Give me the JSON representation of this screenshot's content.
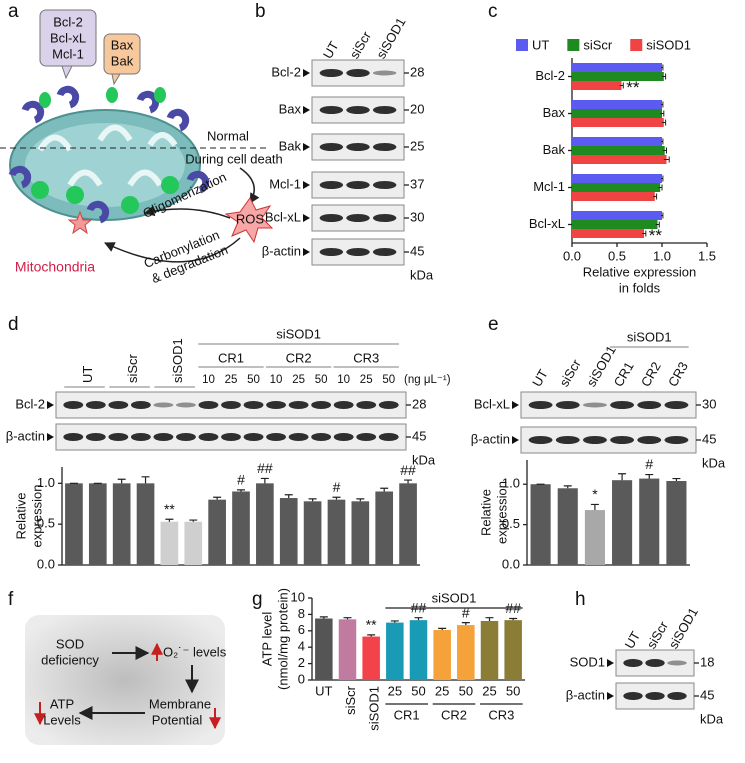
{
  "panel_labels": [
    "a",
    "b",
    "c",
    "d",
    "e",
    "f",
    "g",
    "h"
  ],
  "diagram_a": {
    "anti_apoptotic": [
      "Bcl-2",
      "Bcl-xL",
      "Mcl-1"
    ],
    "pro_apoptotic": [
      "Bax",
      "Bak"
    ],
    "normal": "Normal",
    "cell_death": "During cell death",
    "ros": "ROS",
    "oligomerization": "Oligomerization",
    "carbonylation": [
      "Carbonylation",
      "& degradation"
    ],
    "organelle": "Mitochondria"
  },
  "blot_b": {
    "lanes": [
      "UT",
      "siScr",
      "siSOD1"
    ],
    "rows": [
      {
        "label": "Bcl-2",
        "kda": 28
      },
      {
        "label": "Bax",
        "kda": 20
      },
      {
        "label": "Bak",
        "kda": 25
      },
      {
        "label": "Mcl-1",
        "kda": 37
      },
      {
        "label": "Bcl-xL",
        "kda": 30
      },
      {
        "label": "β-actin",
        "kda": 45
      }
    ],
    "kda_unit": "kDa"
  },
  "blot_d": {
    "lanes": [
      "UT",
      null,
      "siScr",
      null,
      "siSOD1",
      null,
      "10",
      "25",
      "50",
      "10",
      "25",
      "50",
      "10",
      "25",
      "50"
    ],
    "groups": [
      "CR1",
      "CR2",
      "CR3"
    ],
    "super_label": "siSOD1",
    "unit": "(ng μL⁻¹)",
    "rows": [
      {
        "label": "Bcl-2",
        "kda": 28
      },
      {
        "label": "β-actin",
        "kda": 45
      }
    ],
    "kda_unit": "kDa"
  },
  "blot_e": {
    "lanes": [
      "UT",
      "siScr",
      "siSOD1",
      "CR1",
      "CR2",
      "CR3"
    ],
    "super_label": "siSOD1",
    "rows": [
      {
        "label": "Bcl-xL",
        "kda": 30
      },
      {
        "label": "β-actin",
        "kda": 45
      }
    ],
    "kda_unit": "kDa"
  },
  "blot_h": {
    "lanes": [
      "UT",
      "siScr",
      "siSOD1"
    ],
    "rows": [
      {
        "label": "SOD1",
        "kda": 18
      },
      {
        "label": "β-actin",
        "kda": 45
      }
    ],
    "kda_unit": "kDa"
  },
  "diagram_f": {
    "sod": [
      "SOD",
      "deficiency"
    ],
    "o2": "O₂˙⁻ levels",
    "membrane": [
      "Membrane",
      "Potential"
    ],
    "atp": [
      "ATP",
      "Levels"
    ]
  },
  "chart_data": [
    {
      "type": "barh",
      "categories": [
        "Bcl-2",
        "Bax",
        "Bak",
        "Mcl-1",
        "Bcl-xL"
      ],
      "series": [
        {
          "name": "UT",
          "color": "#5b5bf2",
          "values": [
            1.0,
            1.0,
            1.0,
            1.0,
            1.0
          ],
          "errors": [
            0.01,
            0.01,
            0.01,
            0.01,
            0.01
          ],
          "annotations": [
            null,
            null,
            null,
            null,
            null
          ]
        },
        {
          "name": "siScr",
          "color": "#1f8a1f",
          "values": [
            1.02,
            1.0,
            1.03,
            0.98,
            0.95
          ],
          "errors": [
            0.02,
            0.02,
            0.02,
            0.02,
            0.02
          ],
          "annotations": [
            null,
            null,
            null,
            null,
            null
          ]
        },
        {
          "name": "siSOD1",
          "color": "#f04444",
          "values": [
            0.55,
            1.02,
            1.05,
            0.92,
            0.8
          ],
          "errors": [
            0.02,
            0.02,
            0.03,
            0.02,
            0.02
          ],
          "annotations": [
            "**",
            null,
            null,
            null,
            "**"
          ]
        }
      ],
      "xlim": [
        0,
        1.5
      ],
      "xticks": [
        {
          "value": 0,
          "label": "0.0"
        },
        {
          "value": 0.5,
          "label": "0.5"
        },
        {
          "value": 1,
          "label": "1.0"
        },
        {
          "value": 1.5,
          "label": "1.5"
        }
      ],
      "x_label": [
        "Relative expression",
        "in folds"
      ],
      "legend": "top"
    },
    {
      "type": "bar",
      "values": [
        1.0,
        1.0,
        1.0,
        1.0,
        0.53,
        0.53,
        0.8,
        0.9,
        1.0,
        0.82,
        0.78,
        0.8,
        0.78,
        0.9,
        1.0
      ],
      "errors": [
        0.0,
        0.0,
        0.05,
        0.08,
        0.03,
        0.02,
        0.03,
        0.02,
        0.06,
        0.04,
        0.03,
        0.03,
        0.03,
        0.04,
        0.04
      ],
      "colors": [
        "#5a5a5a",
        "#5a5a5a",
        "#5a5a5a",
        "#5a5a5a",
        "#cfcfcf",
        "#cfcfcf",
        "#5a5a5a",
        "#5a5a5a",
        "#5a5a5a",
        "#5a5a5a",
        "#5a5a5a",
        "#5a5a5a",
        "#5a5a5a",
        "#5a5a5a",
        "#5a5a5a"
      ],
      "annotations": [
        null,
        null,
        null,
        null,
        "**",
        null,
        null,
        "#",
        "##",
        null,
        null,
        "#",
        null,
        null,
        "##"
      ],
      "ylim": [
        0,
        1.2
      ],
      "yticks": [
        {
          "value": 0,
          "label": "0.0"
        },
        {
          "value": 0.5,
          "label": "0.5"
        },
        {
          "value": 1,
          "label": "1.0"
        }
      ],
      "y_label": [
        "Relative",
        "expression"
      ]
    },
    {
      "type": "bar",
      "values": [
        1.0,
        0.95,
        0.68,
        1.05,
        1.07,
        1.04
      ],
      "errors": [
        0.0,
        0.03,
        0.07,
        0.08,
        0.05,
        0.03
      ],
      "colors": [
        "#5a5a5a",
        "#5a5a5a",
        "#a8a8a8",
        "#5a5a5a",
        "#5a5a5a",
        "#5a5a5a"
      ],
      "annotations": [
        null,
        null,
        "*",
        null,
        "#",
        null
      ],
      "ylim": [
        0,
        1.3
      ],
      "yticks": [
        {
          "value": 0,
          "label": "0.0"
        },
        {
          "value": 0.5,
          "label": "0.5"
        },
        {
          "value": 1,
          "label": "1.0"
        }
      ],
      "y_label": [
        "Relative",
        "expression"
      ]
    },
    {
      "type": "bar",
      "categories": [
        "UT",
        "siScr",
        "siSOD1",
        "25",
        "50",
        "25",
        "50",
        "25",
        "50"
      ],
      "groups": [
        "CR1",
        "CR2",
        "CR3"
      ],
      "super_label": "siSOD1",
      "values": [
        7.5,
        7.4,
        5.3,
        7.0,
        7.3,
        6.1,
        6.7,
        7.2,
        7.3
      ],
      "errors": [
        0.2,
        0.2,
        0.2,
        0.2,
        0.3,
        0.2,
        0.3,
        0.4,
        0.2
      ],
      "colors": [
        "#555555",
        "#c27ba0",
        "#f2424a",
        "#1a9bb5",
        "#1a9bb5",
        "#f5a23a",
        "#f5a23a",
        "#8b7d35",
        "#8b7d35"
      ],
      "annotations": [
        null,
        null,
        "**",
        null,
        "##",
        null,
        "#",
        null,
        "##"
      ],
      "ylim": [
        0,
        10
      ],
      "yticks": [
        0,
        2,
        4,
        6,
        8,
        10
      ],
      "y_label": [
        "ATP level",
        "(nmol/mg protein)"
      ]
    }
  ]
}
